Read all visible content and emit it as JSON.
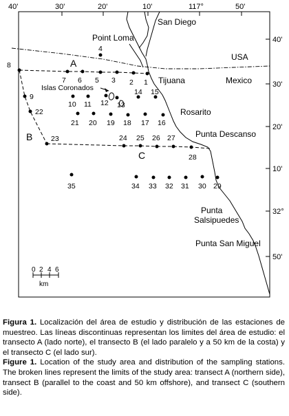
{
  "map": {
    "lon_labels": [
      "40'",
      "30'",
      "20'",
      "10'",
      "117°",
      "50'"
    ],
    "lat_labels": [
      "40'",
      "30'",
      "20'",
      "10'",
      "32°",
      "50'"
    ],
    "places": {
      "san_diego": "San Diego",
      "point_loma": "Point Loma",
      "usa": "USA",
      "tijuana": "Tijuana",
      "mexico": "Mexico",
      "islas_coronados": "Islas Coronados",
      "rosarito": "Rosarito",
      "punta_descanso": "Punta Descanso",
      "punta_salsipuedes_1": "Punta",
      "punta_salsipuedes_2": "Salsipuedes",
      "punta_san_miguel": "Punta San Miguel"
    },
    "transects": {
      "a": "A",
      "b": "B",
      "c": "C"
    },
    "stations": [
      "1",
      "2",
      "3",
      "4",
      "5",
      "6",
      "7",
      "8",
      "9",
      "10",
      "11",
      "12",
      "13",
      "14",
      "15",
      "16",
      "17",
      "18",
      "19",
      "20",
      "21",
      "22",
      "23",
      "24",
      "25",
      "26",
      "27",
      "28",
      "29",
      "30",
      "31",
      "32",
      "33",
      "34",
      "35"
    ],
    "scale": {
      "ticks": [
        "0",
        "2",
        "4",
        "6"
      ],
      "unit": "km"
    }
  },
  "caption": {
    "es_label": "Figura 1.",
    "es_text": "Localización del área de estudio y distribución de las estaciones de muestreo. Las líneas discontinuas representan los limites del área de estudio: el transecto A (lado norte), el transecto B (el lado paralelo y a 50 km de la costa) y el transecto C (el lado sur).",
    "en_label": "Figure 1.",
    "en_text": "Location of the study area and distribution of the sampling stations. The broken lines represent the limits of the study area: transect A (northern side), transect B (parallel to the coast and 50 km offshore), and transect C (southern side)."
  }
}
